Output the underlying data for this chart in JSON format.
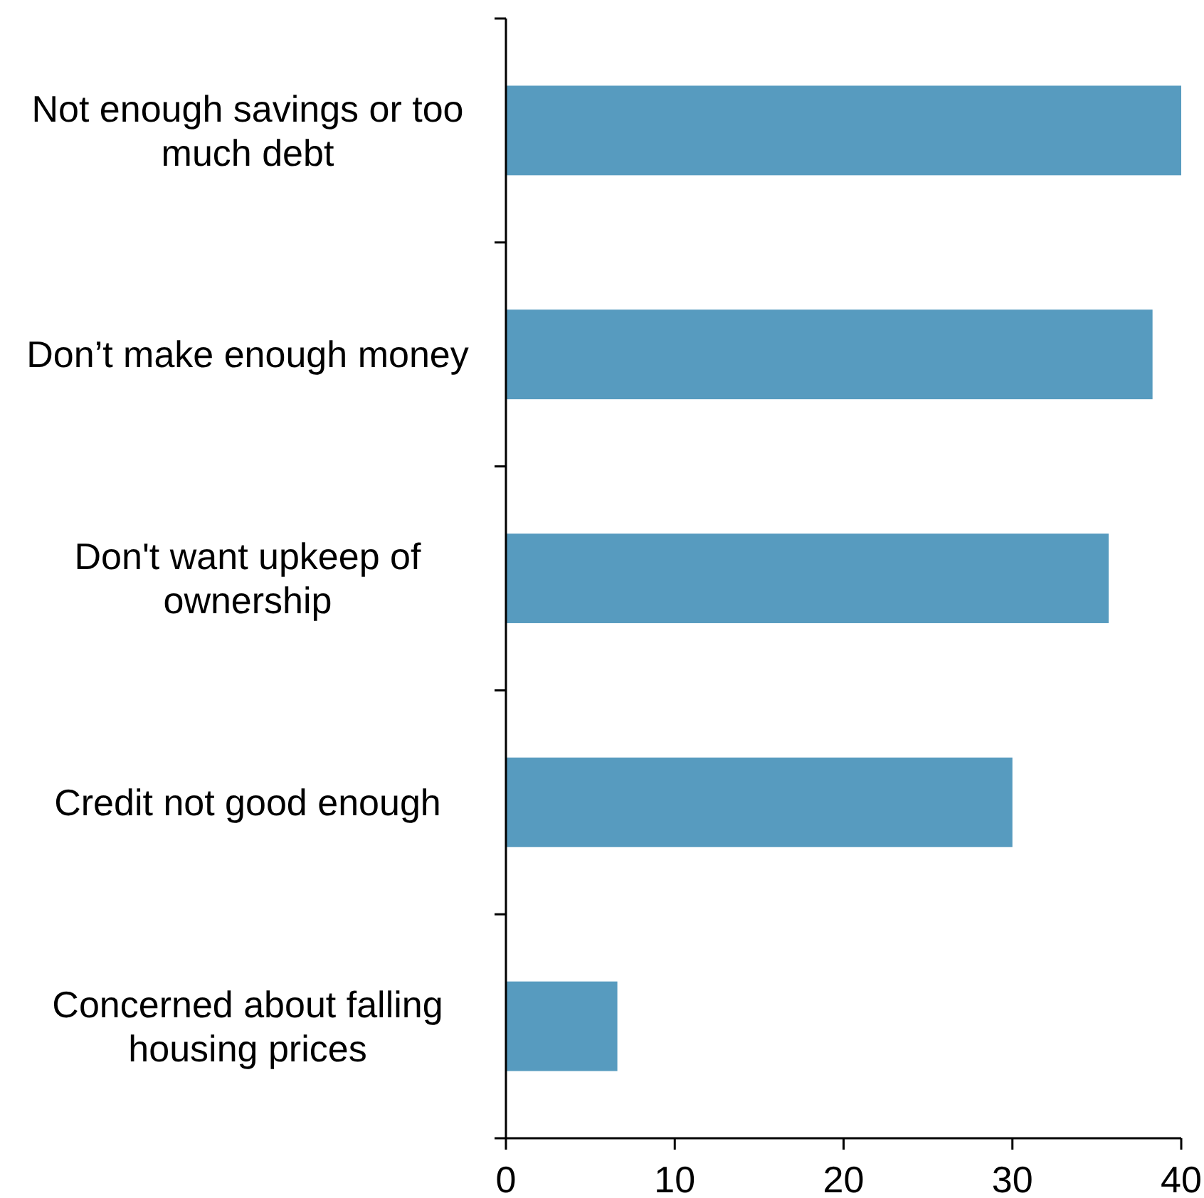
{
  "chart_data": {
    "type": "bar",
    "orientation": "horizontal",
    "categories": [
      "Not enough savings or too much debt",
      "Don’t make enough money",
      "Don't want upkeep of ownership",
      "Credit not good enough",
      "Concerned about falling housing prices"
    ],
    "values": [
      40,
      38.3,
      35.7,
      30,
      6.6
    ],
    "color": "#579bbf",
    "xlim": [
      0,
      40
    ],
    "xticks": [
      0,
      10,
      20,
      30,
      40
    ],
    "grid": false
  }
}
